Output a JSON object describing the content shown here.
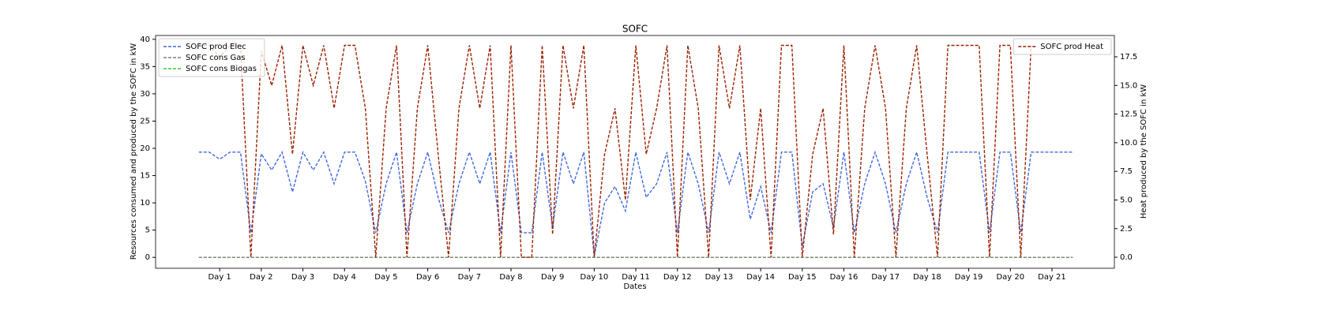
{
  "chart_data": {
    "type": "line",
    "title": "SOFC",
    "xlabel": "Dates",
    "ylabel": "Resources consumed and produced by the SOFC in kW",
    "y2label": "Heat produced by the SOFC in kW",
    "linestyle": "dashed",
    "legend_loc": "upper left",
    "y2_legend_loc": "upper right",
    "xlim": [
      -0.54,
      22.5
    ],
    "ylim": [
      -2,
      40.7
    ],
    "y2lim": [
      -0.96,
      19.36
    ],
    "xticks": [
      {
        "value": 1,
        "label": "Day 1"
      },
      {
        "value": 2,
        "label": "Day 2"
      },
      {
        "value": 3,
        "label": "Day 3"
      },
      {
        "value": 4,
        "label": "Day 4"
      },
      {
        "value": 5,
        "label": "Day 5"
      },
      {
        "value": 6,
        "label": "Day 6"
      },
      {
        "value": 7,
        "label": "Day 7"
      },
      {
        "value": 8,
        "label": "Day 8"
      },
      {
        "value": 9,
        "label": "Day 9"
      },
      {
        "value": 10,
        "label": "Day 10"
      },
      {
        "value": 11,
        "label": "Day 11"
      },
      {
        "value": 12,
        "label": "Day 12"
      },
      {
        "value": 13,
        "label": "Day 13"
      },
      {
        "value": 14,
        "label": "Day 14"
      },
      {
        "value": 15,
        "label": "Day 15"
      },
      {
        "value": 16,
        "label": "Day 16"
      },
      {
        "value": 17,
        "label": "Day 17"
      },
      {
        "value": 18,
        "label": "Day 18"
      },
      {
        "value": 19,
        "label": "Day 19"
      },
      {
        "value": 20,
        "label": "Day 20"
      },
      {
        "value": 21,
        "label": "Day 21"
      }
    ],
    "yticks": [
      0,
      5,
      10,
      15,
      20,
      25,
      30,
      35,
      40
    ],
    "y2ticks": [
      {
        "value": 0,
        "label": "0.0"
      },
      2.5,
      {
        "value": 5,
        "label": "5.0"
      },
      7.5,
      {
        "value": 10,
        "label": "10.0"
      },
      12.5,
      {
        "value": 15,
        "label": "15.0"
      },
      17.5
    ],
    "x": [
      0.5,
      0.75,
      1,
      1.25,
      1.5,
      1.75,
      2,
      2.25,
      2.5,
      2.75,
      3,
      3.25,
      3.5,
      3.75,
      4,
      4.25,
      4.5,
      4.75,
      5,
      5.25,
      5.5,
      5.75,
      6,
      6.25,
      6.5,
      6.75,
      7,
      7.25,
      7.5,
      7.75,
      8,
      8.25,
      8.5,
      8.75,
      9,
      9.25,
      9.5,
      9.75,
      10,
      10.25,
      10.5,
      10.75,
      11,
      11.25,
      11.5,
      11.75,
      12,
      12.25,
      12.5,
      12.75,
      13,
      13.25,
      13.5,
      13.75,
      14,
      14.25,
      14.5,
      14.75,
      15,
      15.25,
      15.5,
      15.75,
      16,
      16.25,
      16.5,
      16.75,
      17,
      17.25,
      17.5,
      17.75,
      18,
      18.25,
      18.5,
      18.75,
      19,
      19.25,
      19.5,
      19.75,
      20,
      20.25,
      20.5,
      20.75,
      21,
      21.25,
      21.5
    ],
    "series": [
      {
        "name": "SOFC cons Biogas",
        "color": "#32cd32",
        "values": [
          0,
          0,
          0,
          0,
          0,
          0,
          0,
          0,
          0,
          0,
          0,
          0,
          0,
          0,
          0,
          0,
          0,
          0,
          0,
          0,
          0,
          0,
          0,
          0,
          0,
          0,
          0,
          0,
          0,
          0,
          0,
          0,
          0,
          0,
          0,
          0,
          0,
          0,
          0,
          0,
          0,
          0,
          0,
          0,
          0,
          0,
          0,
          0,
          0,
          0,
          0,
          0,
          0,
          0,
          0,
          0,
          0,
          0,
          0,
          0,
          0,
          0,
          0,
          0,
          0,
          0,
          0,
          0,
          0,
          0,
          0,
          0,
          0,
          0,
          0,
          0,
          0,
          0,
          0,
          0,
          0,
          0,
          0,
          0,
          0
        ]
      },
      {
        "name": "SOFC prod Elec",
        "color": "#4169e1",
        "values": [
          19.3,
          19.3,
          18,
          19.3,
          19.3,
          4.5,
          19,
          16,
          19.3,
          12,
          19.3,
          16,
          19.3,
          13.5,
          19.3,
          19.3,
          14,
          4.5,
          13.5,
          19.3,
          4.5,
          13.5,
          19.3,
          11,
          4.5,
          13.5,
          19.3,
          13.5,
          19.3,
          4.5,
          19.3,
          4.5,
          4.5,
          19.3,
          5.5,
          19.3,
          13.5,
          19.3,
          0.2,
          10,
          13,
          8.5,
          19.3,
          11,
          13.5,
          19.3,
          4.5,
          19.3,
          13.5,
          4.5,
          19.3,
          13.5,
          19.3,
          7,
          13,
          4.5,
          19.3,
          19.3,
          2,
          12,
          13.5,
          5.5,
          19.3,
          4.5,
          13.5,
          19.3,
          13.5,
          4.5,
          13.5,
          19.3,
          11,
          4.5,
          19.3,
          19.3,
          19.3,
          19.3,
          4.5,
          19.3,
          19.3,
          4.5,
          19.3,
          19.3,
          19.3,
          19.3,
          19.3
        ]
      },
      {
        "name": "SOFC cons Gas",
        "color": "#808080",
        "values": [
          0,
          0,
          0,
          0,
          0,
          0,
          0,
          0,
          0,
          0,
          0,
          0,
          0,
          0,
          0,
          0,
          0,
          0,
          0,
          0,
          0,
          0,
          0,
          0,
          0,
          0,
          0,
          0,
          0,
          0,
          0,
          0,
          0,
          0,
          0,
          0,
          0,
          0,
          0,
          0,
          0,
          0,
          0,
          0,
          0,
          0,
          0,
          0,
          0,
          0,
          0,
          0,
          0,
          0,
          0,
          0,
          0,
          0,
          0,
          0,
          0,
          0,
          0,
          0,
          0,
          0,
          0,
          0,
          0,
          0,
          0,
          0,
          0,
          0,
          0,
          0,
          0,
          0,
          0,
          0,
          0,
          0,
          0,
          0,
          0
        ]
      },
      {
        "name": "SOFC prod Heat",
        "color": "#9b2300",
        "axis": "y2",
        "values": [
          18.5,
          18.5,
          17.5,
          18.5,
          18.5,
          0,
          18,
          15,
          18.5,
          9,
          18.5,
          15,
          18.5,
          13,
          18.5,
          18.5,
          13,
          0,
          13,
          18.5,
          0,
          13,
          18.5,
          9,
          0,
          13,
          18.5,
          13,
          18.5,
          0,
          18.5,
          0,
          0,
          18.5,
          2,
          18.5,
          13,
          18.5,
          0,
          9,
          13,
          5,
          18.5,
          9,
          13,
          18.5,
          0,
          18.5,
          13,
          0,
          18.5,
          13,
          18.5,
          5,
          13,
          0,
          18.5,
          18.5,
          0,
          9,
          13,
          2,
          18.5,
          0,
          13,
          18.5,
          13,
          0,
          13,
          18.5,
          9,
          0,
          18.5,
          18.5,
          18.5,
          18.5,
          0,
          18.5,
          18.5,
          0,
          18.5,
          null,
          null,
          null,
          null
        ]
      }
    ]
  }
}
